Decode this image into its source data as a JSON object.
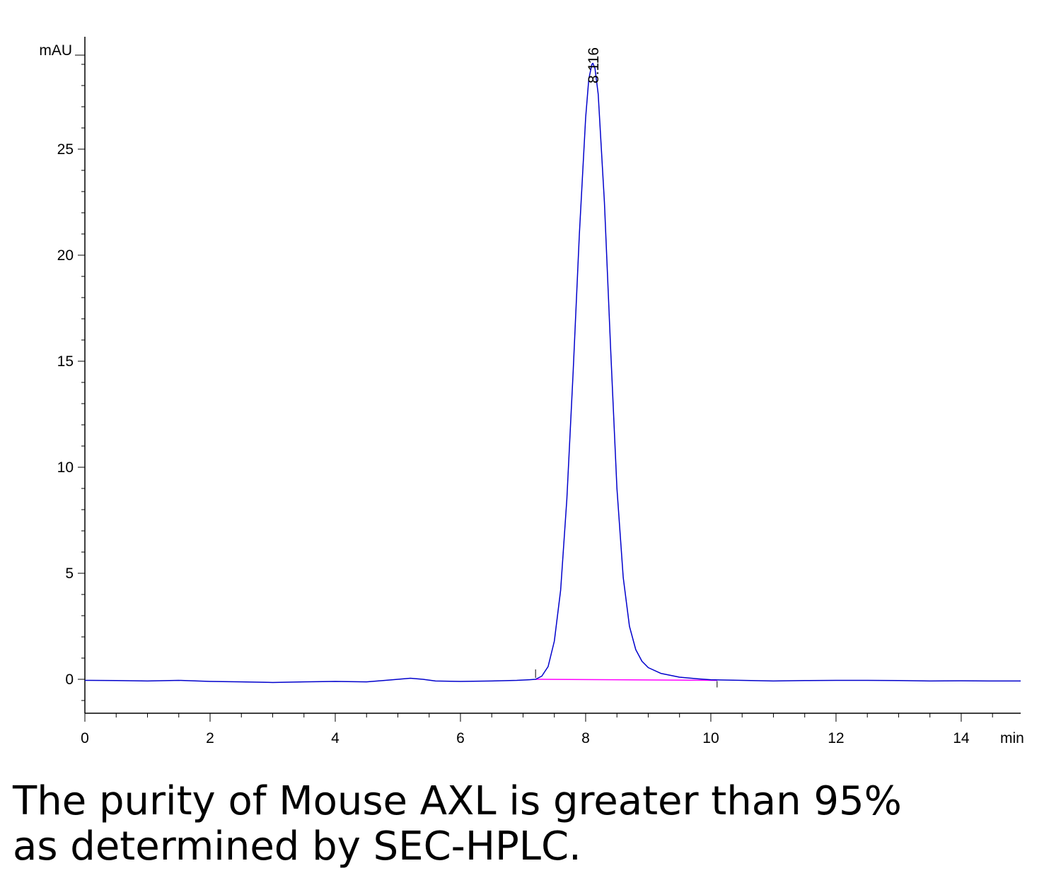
{
  "chart_data": {
    "type": "line",
    "ylabel": "mAU",
    "xlabel": "min",
    "xlim": [
      0,
      14.95
    ],
    "ylim": [
      -1.6,
      30.3
    ],
    "x_ticks": [
      "0",
      "2",
      "4",
      "6",
      "8",
      "10",
      "12",
      "14"
    ],
    "y_ticks": [
      "0",
      "5",
      "10",
      "15",
      "20",
      "25"
    ],
    "peak_label": "8.116",
    "series": [
      {
        "values": [
          [
            0.0,
            -0.05
          ],
          [
            0.5,
            -0.06
          ],
          [
            1.0,
            -0.08
          ],
          [
            1.5,
            -0.05
          ],
          [
            2.0,
            -0.1
          ],
          [
            2.5,
            -0.12
          ],
          [
            3.0,
            -0.15
          ],
          [
            3.5,
            -0.12
          ],
          [
            4.0,
            -0.1
          ],
          [
            4.5,
            -0.12
          ],
          [
            4.8,
            -0.05
          ],
          [
            5.0,
            0.0
          ],
          [
            5.2,
            0.05
          ],
          [
            5.4,
            0.0
          ],
          [
            5.6,
            -0.08
          ],
          [
            6.0,
            -0.1
          ],
          [
            6.5,
            -0.08
          ],
          [
            6.9,
            -0.05
          ],
          [
            7.1,
            -0.02
          ],
          [
            7.2,
            0.0
          ],
          [
            7.3,
            0.15
          ],
          [
            7.4,
            0.6
          ],
          [
            7.5,
            1.8
          ],
          [
            7.6,
            4.2
          ],
          [
            7.7,
            8.5
          ],
          [
            7.8,
            14.5
          ],
          [
            7.9,
            21.0
          ],
          [
            8.0,
            26.5
          ],
          [
            8.05,
            28.3
          ],
          [
            8.1,
            29.0
          ],
          [
            8.116,
            29.05
          ],
          [
            8.15,
            28.8
          ],
          [
            8.2,
            27.6
          ],
          [
            8.3,
            22.5
          ],
          [
            8.4,
            15.5
          ],
          [
            8.5,
            9.0
          ],
          [
            8.6,
            4.8
          ],
          [
            8.7,
            2.5
          ],
          [
            8.8,
            1.4
          ],
          [
            8.9,
            0.85
          ],
          [
            9.0,
            0.55
          ],
          [
            9.2,
            0.28
          ],
          [
            9.5,
            0.1
          ],
          [
            9.8,
            0.02
          ],
          [
            10.0,
            -0.02
          ],
          [
            10.5,
            -0.05
          ],
          [
            11.0,
            -0.08
          ],
          [
            11.5,
            -0.06
          ],
          [
            12.0,
            -0.05
          ],
          [
            12.5,
            -0.05
          ],
          [
            13.0,
            -0.06
          ],
          [
            13.5,
            -0.08
          ],
          [
            14.0,
            -0.07
          ],
          [
            14.5,
            -0.08
          ],
          [
            14.95,
            -0.08
          ]
        ]
      }
    ],
    "baseline": [
      [
        7.2,
        0.0
      ],
      [
        10.1,
        -0.05
      ]
    ],
    "colors": {
      "trace": "#0000cc",
      "baseline": "#ff00ff",
      "axis": "#000000"
    }
  },
  "caption": {
    "line1": "The purity of Mouse AXL is greater than 95%",
    "line2": "as determined by SEC-HPLC."
  }
}
